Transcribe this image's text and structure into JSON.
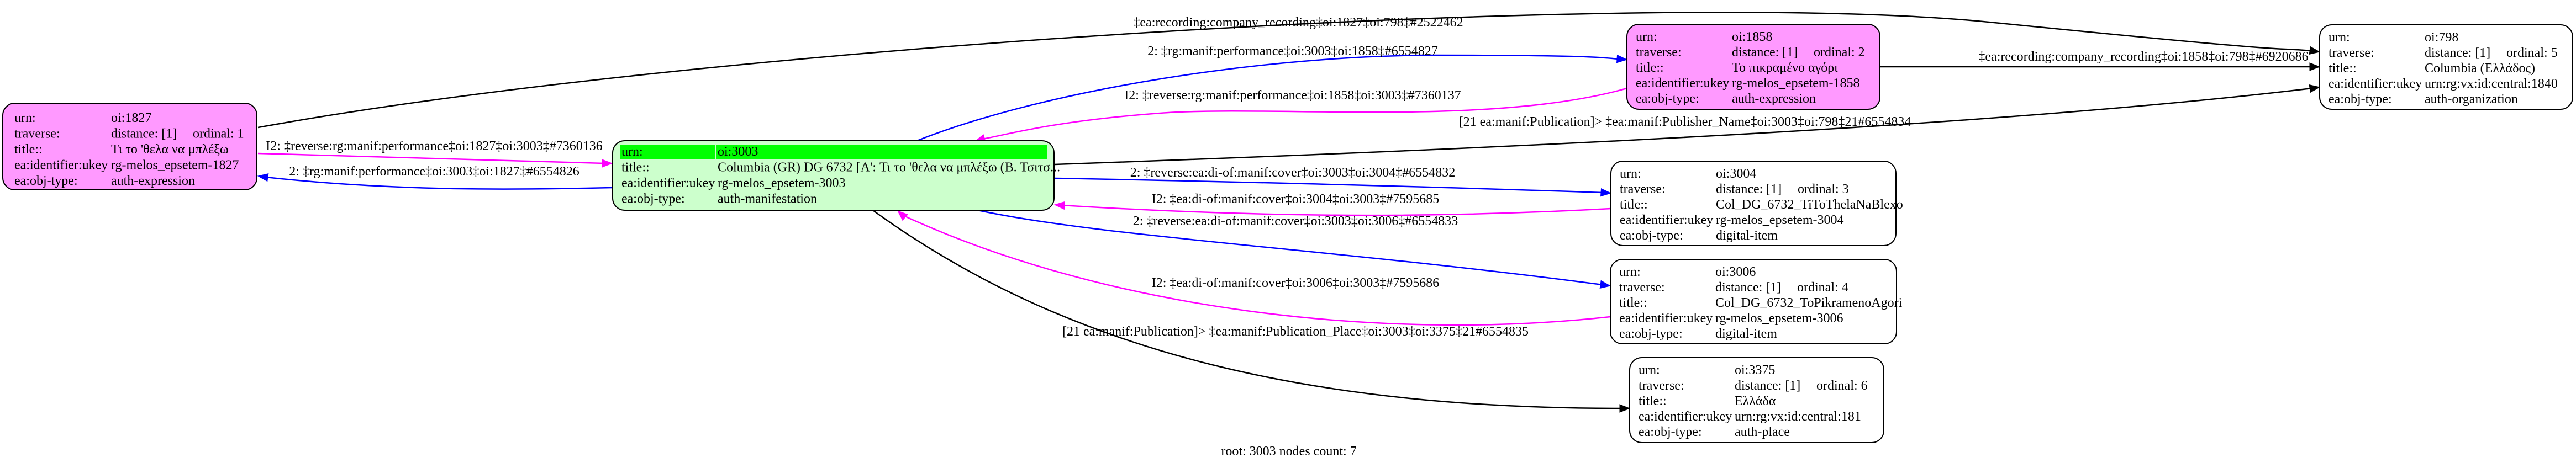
{
  "colors": {
    "expression_fill": "#ff99ff",
    "manifestation_fill": "#ccffcc",
    "root_header": "#00ff00",
    "default_fill": "#ffffff",
    "reverse_edge": "#ff00ff",
    "forward_edge": "#0000ff",
    "other_edge": "#000000"
  },
  "nodes": {
    "n1827": {
      "kind": "expression",
      "rows": [
        {
          "k": "urn:",
          "v": "oi:1827"
        },
        {
          "k": "traverse:",
          "v": "distance: [1]",
          "v2": "ordinal: 1"
        },
        {
          "k": "title::",
          "v": "Τι το 'θελα να μπλέξω"
        },
        {
          "k": "ea:identifier:ukey",
          "v": "rg-melos_epsetem-1827"
        },
        {
          "k": "ea:obj-type:",
          "v": "auth-expression"
        }
      ]
    },
    "n3003": {
      "kind": "root",
      "rows": [
        {
          "k": "urn:",
          "v": "oi:3003"
        },
        {
          "k": "title::",
          "v": "Columbia (GR) DG 6732 [A': Τι το 'θελα να μπλέξω (Β. Τσιτσ..."
        },
        {
          "k": "ea:identifier:ukey",
          "v": "rg-melos_epsetem-3003"
        },
        {
          "k": "ea:obj-type:",
          "v": "auth-manifestation"
        }
      ]
    },
    "n1858": {
      "kind": "expression",
      "rows": [
        {
          "k": "urn:",
          "v": "oi:1858"
        },
        {
          "k": "traverse:",
          "v": "distance: [1]",
          "v2": "ordinal: 2"
        },
        {
          "k": "title::",
          "v": "Το πικραμένο αγόρι"
        },
        {
          "k": "ea:identifier:ukey",
          "v": "rg-melos_epsetem-1858"
        },
        {
          "k": "ea:obj-type:",
          "v": "auth-expression"
        }
      ]
    },
    "n798": {
      "kind": "default",
      "rows": [
        {
          "k": "urn:",
          "v": "oi:798"
        },
        {
          "k": "traverse:",
          "v": "distance: [1]",
          "v2": "ordinal: 5"
        },
        {
          "k": "title::",
          "v": "Columbia (Ελλάδος)"
        },
        {
          "k": "ea:identifier:ukey",
          "v": "urn:rg:vx:id:central:1840"
        },
        {
          "k": "ea:obj-type:",
          "v": "auth-organization"
        }
      ]
    },
    "n3004": {
      "kind": "default",
      "rows": [
        {
          "k": "urn:",
          "v": "oi:3004"
        },
        {
          "k": "traverse:",
          "v": "distance: [1]",
          "v2": "ordinal: 3"
        },
        {
          "k": "title::",
          "v": "Col_DG_6732_TiToThelaNaBlexo"
        },
        {
          "k": "ea:identifier:ukey",
          "v": "rg-melos_epsetem-3004"
        },
        {
          "k": "ea:obj-type:",
          "v": "digital-item"
        }
      ]
    },
    "n3006": {
      "kind": "default",
      "rows": [
        {
          "k": "urn:",
          "v": "oi:3006"
        },
        {
          "k": "traverse:",
          "v": "distance: [1]",
          "v2": "ordinal: 4"
        },
        {
          "k": "title::",
          "v": "Col_DG_6732_ToPikramenoAgori"
        },
        {
          "k": "ea:identifier:ukey",
          "v": "rg-melos_epsetem-3006"
        },
        {
          "k": "ea:obj-type:",
          "v": "digital-item"
        }
      ]
    },
    "n3375": {
      "kind": "default",
      "rows": [
        {
          "k": "urn:",
          "v": "oi:3375"
        },
        {
          "k": "traverse:",
          "v": "distance: [1]",
          "v2": "ordinal: 6"
        },
        {
          "k": "title::",
          "v": "Ελλάδα"
        },
        {
          "k": "ea:identifier:ukey",
          "v": "urn:rg:vx:id:central:181"
        },
        {
          "k": "ea:obj-type:",
          "v": "auth-place"
        }
      ]
    }
  },
  "edges": [
    {
      "from": "oi:1827",
      "to": "oi:798",
      "type": "other",
      "label": "‡ea:recording:company_recording‡oi:1827‡oi:798‡#2522462"
    },
    {
      "from": "oi:3003",
      "to": "oi:1858",
      "type": "forward",
      "label": "2: ‡rg:manif:performance‡oi:3003‡oi:1858‡#6554827"
    },
    {
      "from": "oi:1858",
      "to": "oi:3003",
      "type": "reverse",
      "label": "I2: ‡reverse:rg:manif:performance‡oi:1858‡oi:3003‡#7360137"
    },
    {
      "from": "oi:1858",
      "to": "oi:798",
      "type": "other",
      "label": "‡ea:recording:company_recording‡oi:1858‡oi:798‡#6920686"
    },
    {
      "from": "oi:3003",
      "to": "oi:798",
      "type": "other",
      "label": "[21 ea:manif:Publication]> ‡ea:manif:Publisher_Name‡oi:3003‡oi:798‡21#6554834"
    },
    {
      "from": "oi:3003",
      "to": "oi:3004",
      "type": "forward",
      "label": "2: ‡reverse:ea:di-of:manif:cover‡oi:3003‡oi:3004‡#6554832"
    },
    {
      "from": "oi:3004",
      "to": "oi:3003",
      "type": "reverse",
      "label": "I2: ‡ea:di-of:manif:cover‡oi:3004‡oi:3003‡#7595685"
    },
    {
      "from": "oi:3003",
      "to": "oi:3006",
      "type": "forward",
      "label": "2: ‡reverse:ea:di-of:manif:cover‡oi:3003‡oi:3006‡#6554833"
    },
    {
      "from": "oi:3006",
      "to": "oi:3003",
      "type": "reverse",
      "label": "I2: ‡ea:di-of:manif:cover‡oi:3006‡oi:3003‡#7595686"
    },
    {
      "from": "oi:3003",
      "to": "oi:3375",
      "type": "other",
      "label": "[21 ea:manif:Publication]> ‡ea:manif:Publication_Place‡oi:3003‡oi:3375‡21#6554835"
    },
    {
      "from": "oi:1827",
      "to": "oi:3003",
      "type": "reverse",
      "label": "I2: ‡reverse:rg:manif:performance‡oi:1827‡oi:3003‡#7360136"
    },
    {
      "from": "oi:3003",
      "to": "oi:1827",
      "type": "forward",
      "label": "2: ‡rg:manif:performance‡oi:3003‡oi:1827‡#6554826"
    }
  ],
  "footer": "root: 3003 nodes count: 7"
}
